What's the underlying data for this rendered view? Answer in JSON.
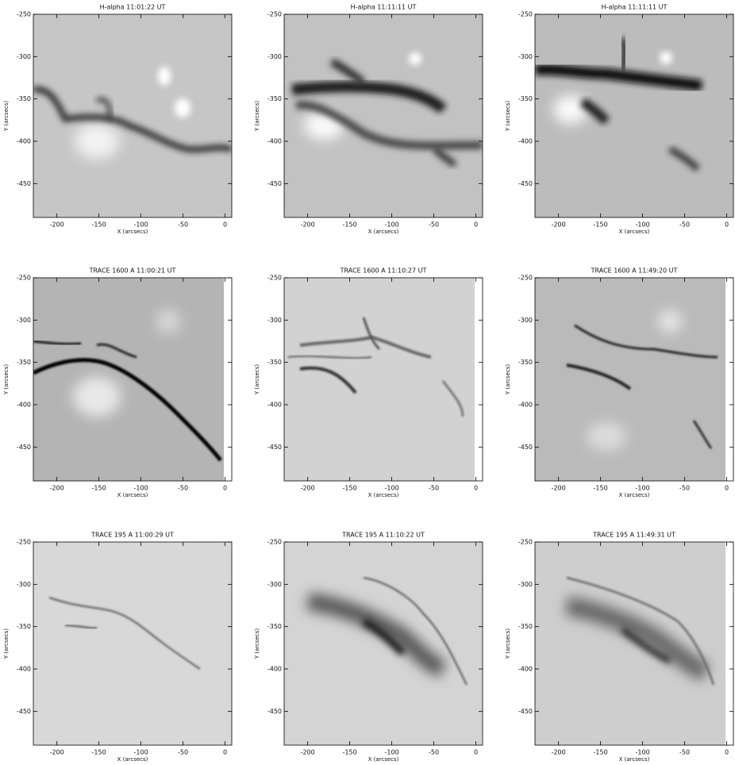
{
  "chart_data": [
    {
      "type": "image",
      "title": "H-alpha 11:01:22 UT",
      "xlabel": "X (arcsecs)",
      "ylabel": "Y (arcsecs)",
      "xlim": [
        -228,
        8
      ],
      "ylim": [
        -490,
        -250
      ],
      "xticks": [
        -200,
        -150,
        -100,
        -50,
        0
      ],
      "yticks": [
        -250,
        -300,
        -350,
        -400,
        -450
      ]
    },
    {
      "type": "image",
      "title": "H-alpha 11:11:11 UT",
      "xlabel": "X (arcsecs)",
      "ylabel": "Y (arcsecs)",
      "xlim": [
        -228,
        8
      ],
      "ylim": [
        -490,
        -250
      ],
      "xticks": [
        -200,
        -150,
        -100,
        -50,
        0
      ],
      "yticks": [
        -250,
        -300,
        -350,
        -400,
        -450
      ]
    },
    {
      "type": "image",
      "title": "H-alpha 11:11:11 UT",
      "xlabel": "X (arcsecs)",
      "ylabel": "Y (arcsecs)",
      "xlim": [
        -228,
        8
      ],
      "ylim": [
        -490,
        -250
      ],
      "xticks": [
        -200,
        -150,
        -100,
        -50,
        0
      ],
      "yticks": [
        -250,
        -300,
        -350,
        -400,
        -450
      ]
    },
    {
      "type": "image",
      "title": "TRACE 1600 A 11:00:21 UT",
      "xlabel": "X (arcsecs)",
      "ylabel": "Y (arcsecs)",
      "xlim": [
        -228,
        8
      ],
      "ylim": [
        -490,
        -250
      ],
      "xticks": [
        -200,
        -150,
        -100,
        -50,
        0
      ],
      "yticks": [
        -250,
        -300,
        -350,
        -400,
        -450
      ]
    },
    {
      "type": "image",
      "title": "TRACE 1600 A 11:10:27 UT",
      "xlabel": "X (arcsecs)",
      "ylabel": "Y (arcsecs)",
      "xlim": [
        -228,
        8
      ],
      "ylim": [
        -490,
        -250
      ],
      "xticks": [
        -200,
        -150,
        -100,
        -50,
        0
      ],
      "yticks": [
        -250,
        -300,
        -350,
        -400,
        -450
      ]
    },
    {
      "type": "image",
      "title": "TRACE 1600 A 11:49:20 UT",
      "xlabel": "X (arcsecs)",
      "ylabel": "Y (arcsecs)",
      "xlim": [
        -228,
        8
      ],
      "ylim": [
        -490,
        -250
      ],
      "xticks": [
        -200,
        -150,
        -100,
        -50,
        0
      ],
      "yticks": [
        -250,
        -300,
        -350,
        -400,
        -450
      ]
    },
    {
      "type": "image",
      "title": "TRACE 195 A 11:00:29 UT",
      "xlabel": "X (arcsecs)",
      "ylabel": "Y (arcsecs)",
      "xlim": [
        -228,
        8
      ],
      "ylim": [
        -490,
        -250
      ],
      "xticks": [
        -200,
        -150,
        -100,
        -50,
        0
      ],
      "yticks": [
        -250,
        -300,
        -350,
        -400,
        -450
      ]
    },
    {
      "type": "image",
      "title": "TRACE 195 A 11:10:22 UT",
      "xlabel": "X (arcsecs)",
      "ylabel": "Y (arcsecs)",
      "xlim": [
        -228,
        8
      ],
      "ylim": [
        -490,
        -250
      ],
      "xticks": [
        -200,
        -150,
        -100,
        -50,
        0
      ],
      "yticks": [
        -250,
        -300,
        -350,
        -400,
        -450
      ]
    },
    {
      "type": "image",
      "title": "TRACE 195 A 11:49:31 UT",
      "xlabel": "X (arcsecs)",
      "ylabel": "Y (arcsecs)",
      "xlim": [
        -228,
        8
      ],
      "ylim": [
        -490,
        -250
      ],
      "xticks": [
        -200,
        -150,
        -100,
        -50,
        0
      ],
      "yticks": [
        -250,
        -300,
        -350,
        -400,
        -450
      ]
    }
  ]
}
